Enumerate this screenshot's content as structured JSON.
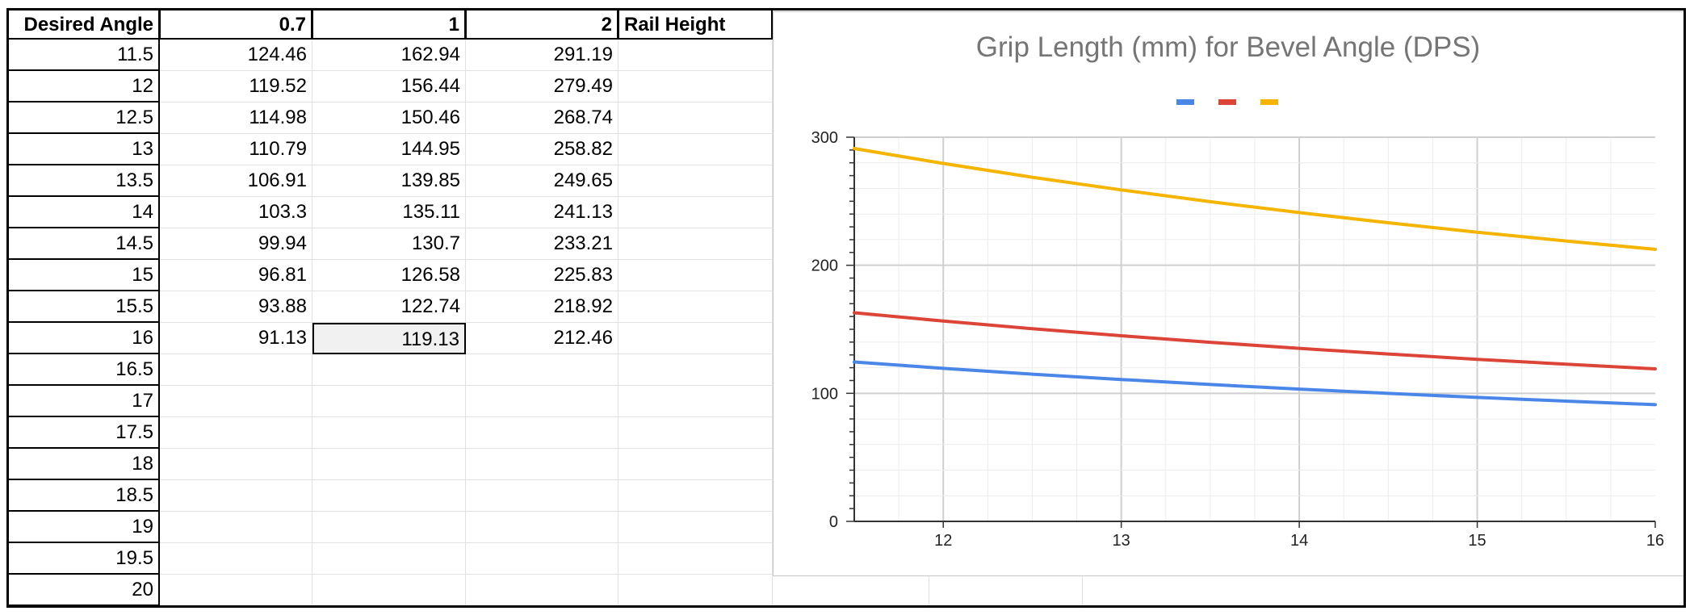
{
  "sheet": {
    "headers": [
      "Desired Angle",
      "0.7",
      "1",
      "2",
      "Rail Height"
    ],
    "rows": [
      [
        "11.5",
        "124.46",
        "162.94",
        "291.19"
      ],
      [
        "12",
        "119.52",
        "156.44",
        "279.49"
      ],
      [
        "12.5",
        "114.98",
        "150.46",
        "268.74"
      ],
      [
        "13",
        "110.79",
        "144.95",
        "258.82"
      ],
      [
        "13.5",
        "106.91",
        "139.85",
        "249.65"
      ],
      [
        "14",
        "103.3",
        "135.11",
        "241.13"
      ],
      [
        "14.5",
        "99.94",
        "130.7",
        "233.21"
      ],
      [
        "15",
        "96.81",
        "126.58",
        "225.83"
      ],
      [
        "15.5",
        "93.88",
        "122.74",
        "218.92"
      ],
      [
        "16",
        "91.13",
        "119.13",
        "212.46"
      ],
      [
        "16.5",
        "",
        "",
        ""
      ],
      [
        "17",
        "",
        "",
        ""
      ],
      [
        "17.5",
        "",
        "",
        ""
      ],
      [
        "18",
        "",
        "",
        ""
      ],
      [
        "18.5",
        "",
        "",
        ""
      ],
      [
        "19",
        "",
        "",
        ""
      ],
      [
        "19.5",
        "",
        "",
        ""
      ],
      [
        "20",
        "",
        "",
        ""
      ]
    ],
    "selected_cell": {
      "row": 9,
      "col": 2
    }
  },
  "chart_data": {
    "type": "line",
    "title": "Grip Length (mm) for Bevel Angle (DPS)",
    "xlabel": "",
    "ylabel": "",
    "x": [
      11.5,
      12,
      12.5,
      13,
      13.5,
      14,
      14.5,
      15,
      15.5,
      16
    ],
    "xlim": [
      11.5,
      16
    ],
    "ylim": [
      0,
      300
    ],
    "xticks": [
      "12",
      "13",
      "14",
      "15",
      "16"
    ],
    "yticks": [
      "0",
      "100",
      "200",
      "300"
    ],
    "grid": true,
    "legend": "top-center",
    "series": [
      {
        "color": "#4a86e8",
        "values": [
          124.46,
          119.52,
          114.98,
          110.79,
          106.91,
          103.3,
          99.94,
          96.81,
          93.88,
          91.13
        ]
      },
      {
        "color": "#db4437",
        "values": [
          162.94,
          156.44,
          150.46,
          144.95,
          139.85,
          135.11,
          130.7,
          126.58,
          122.74,
          119.13
        ]
      },
      {
        "color": "#f4b400",
        "values": [
          291.19,
          279.49,
          268.74,
          258.82,
          249.65,
          241.13,
          233.21,
          225.83,
          218.92,
          212.46
        ]
      }
    ]
  }
}
